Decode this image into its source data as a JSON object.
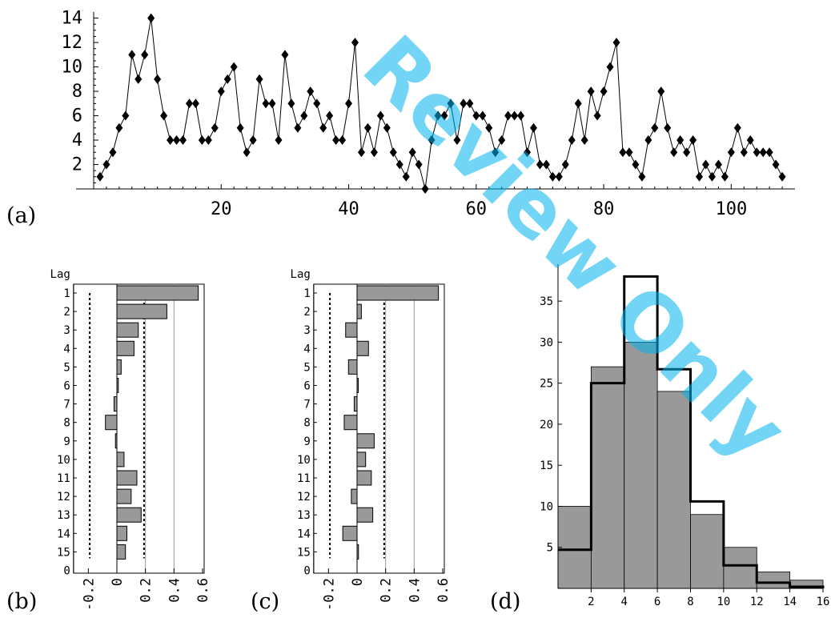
{
  "watermark": "Review Only",
  "chart_data": [
    {
      "panel": "(a)",
      "type": "line",
      "x": [
        1,
        2,
        3,
        4,
        5,
        6,
        7,
        8,
        9,
        10,
        11,
        12,
        13,
        14,
        15,
        16,
        17,
        18,
        19,
        20,
        21,
        22,
        23,
        24,
        25,
        26,
        27,
        28,
        29,
        30,
        31,
        32,
        33,
        34,
        35,
        36,
        37,
        38,
        39,
        40,
        41,
        42,
        43,
        44,
        45,
        46,
        47,
        48,
        49,
        50,
        51,
        52,
        53,
        54,
        55,
        56,
        57,
        58,
        59,
        60,
        61,
        62,
        63,
        64,
        65,
        66,
        67,
        68,
        69,
        70,
        71,
        72,
        73,
        74,
        75,
        76,
        77,
        78,
        79,
        80,
        81,
        82,
        83,
        84,
        85,
        86,
        87,
        88,
        89,
        90,
        91,
        92,
        93,
        94,
        95,
        96,
        97,
        98,
        99,
        100,
        101,
        102,
        103,
        104,
        105,
        106,
        107,
        108
      ],
      "values": [
        1,
        2,
        3,
        5,
        6,
        11,
        9,
        11,
        14,
        9,
        6,
        4,
        4,
        4,
        7,
        7,
        4,
        4,
        5,
        8,
        9,
        10,
        5,
        3,
        4,
        9,
        7,
        7,
        4,
        11,
        7,
        5,
        6,
        8,
        7,
        5,
        6,
        4,
        4,
        7,
        12,
        3,
        5,
        3,
        6,
        5,
        3,
        2,
        1,
        3,
        2,
        0,
        4,
        6,
        6,
        7,
        4,
        7,
        7,
        6,
        6,
        5,
        3,
        4,
        6,
        6,
        6,
        3,
        5,
        2,
        2,
        1,
        1,
        2,
        4,
        7,
        4,
        8,
        6,
        8,
        10,
        12,
        3,
        3,
        2,
        1,
        4,
        5,
        8,
        5,
        3,
        4,
        3,
        4,
        1,
        2,
        1,
        2,
        1,
        3,
        5,
        3,
        4,
        3,
        3,
        3,
        2,
        1
      ],
      "xticks": [
        20,
        40,
        60,
        80,
        100
      ],
      "yticks": [
        2,
        4,
        6,
        8,
        10,
        12,
        14
      ],
      "xlim": [
        0,
        110
      ],
      "ylim": [
        0,
        14.5
      ],
      "marker": "diamond"
    },
    {
      "panel": "(b)",
      "type": "bar",
      "orientation": "horizontal",
      "axis_title": "Lag",
      "categories": [
        "1",
        "2",
        "3",
        "4",
        "5",
        "6",
        "7",
        "8",
        "9",
        "10",
        "11",
        "12",
        "13",
        "14",
        "15"
      ],
      "bottom_label": "0",
      "values": [
        0.57,
        0.35,
        0.15,
        0.12,
        0.03,
        0.01,
        -0.02,
        -0.08,
        -0.01,
        0.05,
        0.14,
        0.1,
        0.17,
        0.07,
        0.06
      ],
      "xticks": [
        "-0.2",
        "0",
        "0.2",
        "0.4",
        "0.6"
      ],
      "xlim": [
        -0.27,
        0.6
      ],
      "confidence_bound": 0.19,
      "bar_color": "#999999"
    },
    {
      "panel": "(c)",
      "type": "bar",
      "orientation": "horizontal",
      "axis_title": "Lag",
      "categories": [
        "1",
        "2",
        "3",
        "4",
        "5",
        "6",
        "7",
        "8",
        "9",
        "10",
        "11",
        "12",
        "13",
        "14",
        "15"
      ],
      "bottom_label": "0",
      "values": [
        0.57,
        0.03,
        -0.08,
        0.08,
        -0.06,
        0.0,
        -0.02,
        -0.09,
        0.12,
        0.06,
        0.1,
        -0.04,
        0.11,
        -0.1,
        0.01
      ],
      "xticks": [
        "-0.2",
        "0",
        "0.2",
        "0.4",
        "0.6"
      ],
      "xlim": [
        -0.27,
        0.6
      ],
      "confidence_bound": 0.19,
      "bar_color": "#999999"
    },
    {
      "panel": "(d)",
      "type": "bar",
      "bin_edges": [
        0,
        2,
        4,
        6,
        8,
        10,
        12,
        14,
        16
      ],
      "values": [
        10,
        27,
        30,
        24,
        9,
        5,
        2,
        1
      ],
      "fitted": [
        4.7,
        25,
        38,
        26.7,
        10.6,
        2.8,
        0.7,
        0.2
      ],
      "xticks": [
        "2",
        "4",
        "6",
        "8",
        "10",
        "12",
        "14",
        "16"
      ],
      "yticks": [
        "5",
        "10",
        "15",
        "20",
        "25",
        "30",
        "35"
      ],
      "xlim": [
        0,
        16
      ],
      "ylim": [
        0,
        39.5
      ],
      "bar_color": "#999999"
    }
  ]
}
